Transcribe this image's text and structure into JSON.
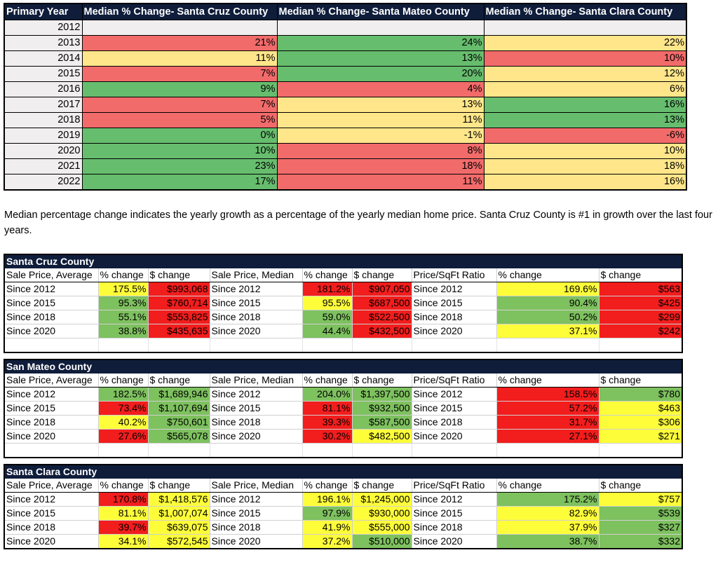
{
  "median_table": {
    "headers": [
      "Primary Year",
      "Median % Change- Santa Cruz County",
      "Median % Change- Santa Mateo County",
      "Median % Change- Santa Clara County"
    ],
    "rows": [
      {
        "year": "2012",
        "cells": [
          {
            "v": "",
            "c": "grey"
          },
          {
            "v": "",
            "c": "grey"
          },
          {
            "v": "",
            "c": "grey"
          }
        ]
      },
      {
        "year": "2013",
        "cells": [
          {
            "v": "21%",
            "c": "red"
          },
          {
            "v": "24%",
            "c": "green"
          },
          {
            "v": "22%",
            "c": "yellow"
          }
        ]
      },
      {
        "year": "2014",
        "cells": [
          {
            "v": "11%",
            "c": "yellow"
          },
          {
            "v": "13%",
            "c": "green"
          },
          {
            "v": "10%",
            "c": "red"
          }
        ]
      },
      {
        "year": "2015",
        "cells": [
          {
            "v": "7%",
            "c": "red"
          },
          {
            "v": "20%",
            "c": "green"
          },
          {
            "v": "12%",
            "c": "yellow"
          }
        ]
      },
      {
        "year": "2016",
        "cells": [
          {
            "v": "9%",
            "c": "green"
          },
          {
            "v": "4%",
            "c": "red"
          },
          {
            "v": "6%",
            "c": "yellow"
          }
        ]
      },
      {
        "year": "2017",
        "cells": [
          {
            "v": "7%",
            "c": "red"
          },
          {
            "v": "13%",
            "c": "yellow"
          },
          {
            "v": "16%",
            "c": "green"
          }
        ]
      },
      {
        "year": "2018",
        "cells": [
          {
            "v": "5%",
            "c": "red"
          },
          {
            "v": "11%",
            "c": "yellow"
          },
          {
            "v": "13%",
            "c": "green"
          }
        ]
      },
      {
        "year": "2019",
        "cells": [
          {
            "v": "0%",
            "c": "green"
          },
          {
            "v": "-1%",
            "c": "yellow"
          },
          {
            "v": "-6%",
            "c": "red"
          }
        ]
      },
      {
        "year": "2020",
        "cells": [
          {
            "v": "10%",
            "c": "green"
          },
          {
            "v": "8%",
            "c": "red"
          },
          {
            "v": "10%",
            "c": "yellow"
          }
        ]
      },
      {
        "year": "2021",
        "cells": [
          {
            "v": "23%",
            "c": "green"
          },
          {
            "v": "18%",
            "c": "red"
          },
          {
            "v": "18%",
            "c": "yellow"
          }
        ]
      },
      {
        "year": "2022",
        "cells": [
          {
            "v": "17%",
            "c": "green"
          },
          {
            "v": "11%",
            "c": "red"
          },
          {
            "v": "16%",
            "c": "yellow"
          }
        ]
      }
    ]
  },
  "note": "Median percentage change indicates the yearly growth as a percentage of the yearly median home price. Santa Cruz County is #1 in growth over the last four years.",
  "county_tables": [
    {
      "title": "Santa Cruz County",
      "headers": [
        "Sale Price, Average",
        "% change",
        "$ change",
        "Sale Price, Median",
        "% change",
        "$ change",
        "Price/SqFt Ratio",
        "% change",
        "$ change"
      ],
      "rows": [
        [
          {
            "v": "Since 2012"
          },
          {
            "v": "175.5%",
            "c": "yellow"
          },
          {
            "v": "$993,068",
            "c": "red"
          },
          {
            "v": "Since 2012"
          },
          {
            "v": "181.2%",
            "c": "red"
          },
          {
            "v": "$907,050",
            "c": "red"
          },
          {
            "v": "Since 2012"
          },
          {
            "v": "169.6%",
            "c": "yellow"
          },
          {
            "v": "$563",
            "c": "red"
          }
        ],
        [
          {
            "v": "Since 2015"
          },
          {
            "v": "95.3%",
            "c": "green"
          },
          {
            "v": "$760,714",
            "c": "red"
          },
          {
            "v": "Since 2015"
          },
          {
            "v": "95.5%",
            "c": "yellow"
          },
          {
            "v": "$687,500",
            "c": "red"
          },
          {
            "v": "Since 2015"
          },
          {
            "v": "90.4%",
            "c": "green"
          },
          {
            "v": "$425",
            "c": "red"
          }
        ],
        [
          {
            "v": "Since 2018"
          },
          {
            "v": "55.1%",
            "c": "green"
          },
          {
            "v": "$553,825",
            "c": "red"
          },
          {
            "v": "Since 2018"
          },
          {
            "v": "59.0%",
            "c": "green"
          },
          {
            "v": "$522,500",
            "c": "red"
          },
          {
            "v": "Since 2018"
          },
          {
            "v": "50.2%",
            "c": "green"
          },
          {
            "v": "$299",
            "c": "red"
          }
        ],
        [
          {
            "v": "Since 2020"
          },
          {
            "v": "38.8%",
            "c": "green"
          },
          {
            "v": "$435,635",
            "c": "red"
          },
          {
            "v": "Since 2020"
          },
          {
            "v": "44.4%",
            "c": "green"
          },
          {
            "v": "$432,500",
            "c": "red"
          },
          {
            "v": "Since 2020"
          },
          {
            "v": "37.1%",
            "c": "yellow"
          },
          {
            "v": "$242",
            "c": "red"
          }
        ]
      ]
    },
    {
      "title": "San Mateo County",
      "headers": [
        "Sale Price, Average",
        "% change",
        "$ change",
        "Sale Price, Median",
        "% change",
        "$ change",
        "Price/SqFt Ratio",
        "% change",
        "$ change"
      ],
      "rows": [
        [
          {
            "v": "Since 2012"
          },
          {
            "v": "182.5%",
            "c": "green"
          },
          {
            "v": "$1,689,946",
            "c": "green"
          },
          {
            "v": "Since 2012"
          },
          {
            "v": "204.0%",
            "c": "green"
          },
          {
            "v": "$1,397,500",
            "c": "green"
          },
          {
            "v": "Since 2012"
          },
          {
            "v": "158.5%",
            "c": "red"
          },
          {
            "v": "$780",
            "c": "green"
          }
        ],
        [
          {
            "v": "Since 2015"
          },
          {
            "v": "73.4%",
            "c": "red"
          },
          {
            "v": "$1,107,694",
            "c": "green"
          },
          {
            "v": "Since 2015"
          },
          {
            "v": "81.1%",
            "c": "red"
          },
          {
            "v": "$932,500",
            "c": "green"
          },
          {
            "v": "Since 2015"
          },
          {
            "v": "57.2%",
            "c": "red"
          },
          {
            "v": "$463",
            "c": "yellow"
          }
        ],
        [
          {
            "v": "Since 2018"
          },
          {
            "v": "40.2%",
            "c": "yellow"
          },
          {
            "v": "$750,601",
            "c": "green"
          },
          {
            "v": "Since 2018"
          },
          {
            "v": "39.3%",
            "c": "red"
          },
          {
            "v": "$587,500",
            "c": "green"
          },
          {
            "v": "Since 2018"
          },
          {
            "v": "31.7%",
            "c": "red"
          },
          {
            "v": "$306",
            "c": "yellow"
          }
        ],
        [
          {
            "v": "Since 2020"
          },
          {
            "v": "27.6%",
            "c": "red"
          },
          {
            "v": "$565,078",
            "c": "green"
          },
          {
            "v": "Since 2020"
          },
          {
            "v": "30.2%",
            "c": "red"
          },
          {
            "v": "$482,500",
            "c": "yellow"
          },
          {
            "v": "Since 2020"
          },
          {
            "v": "27.1%",
            "c": "red"
          },
          {
            "v": "$271",
            "c": "yellow"
          }
        ]
      ]
    },
    {
      "title": "Santa Clara County",
      "headers": [
        "Sale Price, Average",
        "% change",
        "$ change",
        "Sale Price, Median",
        "% change",
        "$ change",
        "Price/SqFt Ratio",
        "% change",
        "$ change"
      ],
      "rows": [
        [
          {
            "v": "Since 2012"
          },
          {
            "v": "170.8%",
            "c": "red"
          },
          {
            "v": "$1,418,576",
            "c": "yellow"
          },
          {
            "v": "Since 2012"
          },
          {
            "v": "196.1%",
            "c": "yellow"
          },
          {
            "v": "$1,245,000",
            "c": "yellow"
          },
          {
            "v": "Since 2012"
          },
          {
            "v": "175.2%",
            "c": "green"
          },
          {
            "v": "$757",
            "c": "yellow"
          }
        ],
        [
          {
            "v": "Since 2015"
          },
          {
            "v": "81.1%",
            "c": "yellow"
          },
          {
            "v": "$1,007,074",
            "c": "yellow"
          },
          {
            "v": "Since 2015"
          },
          {
            "v": "97.9%",
            "c": "green"
          },
          {
            "v": "$930,000",
            "c": "yellow"
          },
          {
            "v": "Since 2015"
          },
          {
            "v": "82.9%",
            "c": "yellow"
          },
          {
            "v": "$539",
            "c": "green"
          }
        ],
        [
          {
            "v": "Since 2018"
          },
          {
            "v": "39.7%",
            "c": "red"
          },
          {
            "v": "$639,075",
            "c": "yellow"
          },
          {
            "v": "Since 2018"
          },
          {
            "v": "41.9%",
            "c": "yellow"
          },
          {
            "v": "$555,000",
            "c": "yellow"
          },
          {
            "v": "Since 2018"
          },
          {
            "v": "37.9%",
            "c": "yellow"
          },
          {
            "v": "$327",
            "c": "green"
          }
        ],
        [
          {
            "v": "Since 2020"
          },
          {
            "v": "34.1%",
            "c": "yellow"
          },
          {
            "v": "$572,545",
            "c": "yellow"
          },
          {
            "v": "Since 2020"
          },
          {
            "v": "37.2%",
            "c": "yellow"
          },
          {
            "v": "$510,000",
            "c": "green"
          },
          {
            "v": "Since 2020"
          },
          {
            "v": "38.7%",
            "c": "green"
          },
          {
            "v": "$332",
            "c": "green"
          }
        ]
      ]
    }
  ]
}
